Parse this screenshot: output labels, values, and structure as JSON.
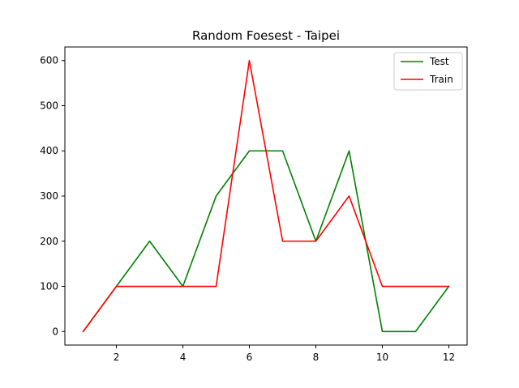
{
  "chart_data": {
    "type": "line",
    "title": "Random Foesest - Taipei",
    "xlabel": "",
    "ylabel": "",
    "x": [
      1,
      2,
      3,
      4,
      5,
      6,
      7,
      8,
      9,
      10,
      11,
      12
    ],
    "xlim": [
      0.45,
      12.55
    ],
    "ylim": [
      -30,
      630
    ],
    "x_ticks": [
      2,
      4,
      6,
      8,
      10,
      12
    ],
    "y_ticks": [
      0,
      100,
      200,
      300,
      400,
      500,
      600
    ],
    "grid": false,
    "legend_position": "top-right",
    "series": [
      {
        "name": "Test",
        "color": "#008000",
        "values": [
          0,
          100,
          200,
          100,
          300,
          400,
          400,
          200,
          400,
          0,
          0,
          100
        ]
      },
      {
        "name": "Train",
        "color": "#ff0000",
        "values": [
          0,
          100,
          100,
          100,
          100,
          600,
          200,
          200,
          300,
          100,
          100,
          100
        ]
      }
    ]
  }
}
